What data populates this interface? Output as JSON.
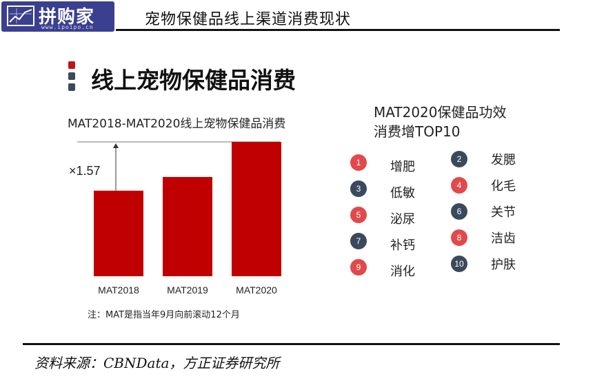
{
  "header": {
    "logo_text": "拼购家",
    "logo_url": "www.ipoipo.cn",
    "title": "宠物保健品线上渠道消费现状"
  },
  "section": {
    "title": "线上宠物保健品消费",
    "mark_colors": [
      "#c0141b",
      "#3a4a5c",
      "#3a4a5c"
    ]
  },
  "chart_data": {
    "type": "bar",
    "title": "MAT2018-MAT2020线上宠物保健品消费",
    "categories": [
      "MAT2018",
      "MAT2019",
      "MAT2020"
    ],
    "values": [
      1.0,
      1.16,
      1.57
    ],
    "ylim": [
      0,
      1.57
    ],
    "xlabel": "",
    "ylabel": "",
    "annotation": "×1.57",
    "bar_color": "#c00000",
    "grid": false,
    "note": "注：MAT是指当年9月向前滚动12个月"
  },
  "top10": {
    "title_line1": "MAT2020保健品功效",
    "title_line2": "消费增TOP10",
    "items": [
      {
        "num": "1",
        "label": "增肥",
        "color": "#e04a4a"
      },
      {
        "num": "2",
        "label": "发腮",
        "color": "#3a4a5c"
      },
      {
        "num": "3",
        "label": "低敏",
        "color": "#3a4a5c"
      },
      {
        "num": "4",
        "label": "化毛",
        "color": "#e04a4a"
      },
      {
        "num": "5",
        "label": "泌尿",
        "color": "#e04a4a"
      },
      {
        "num": "6",
        "label": "关节",
        "color": "#3a4a5c"
      },
      {
        "num": "7",
        "label": "补钙",
        "color": "#3a4a5c"
      },
      {
        "num": "8",
        "label": "洁齿",
        "color": "#e04a4a"
      },
      {
        "num": "9",
        "label": "消化",
        "color": "#e04a4a"
      },
      {
        "num": "10",
        "label": "护肤",
        "color": "#3a4a5c"
      }
    ]
  },
  "footer": {
    "source": "资料来源：CBNData，方正证券研究所"
  }
}
